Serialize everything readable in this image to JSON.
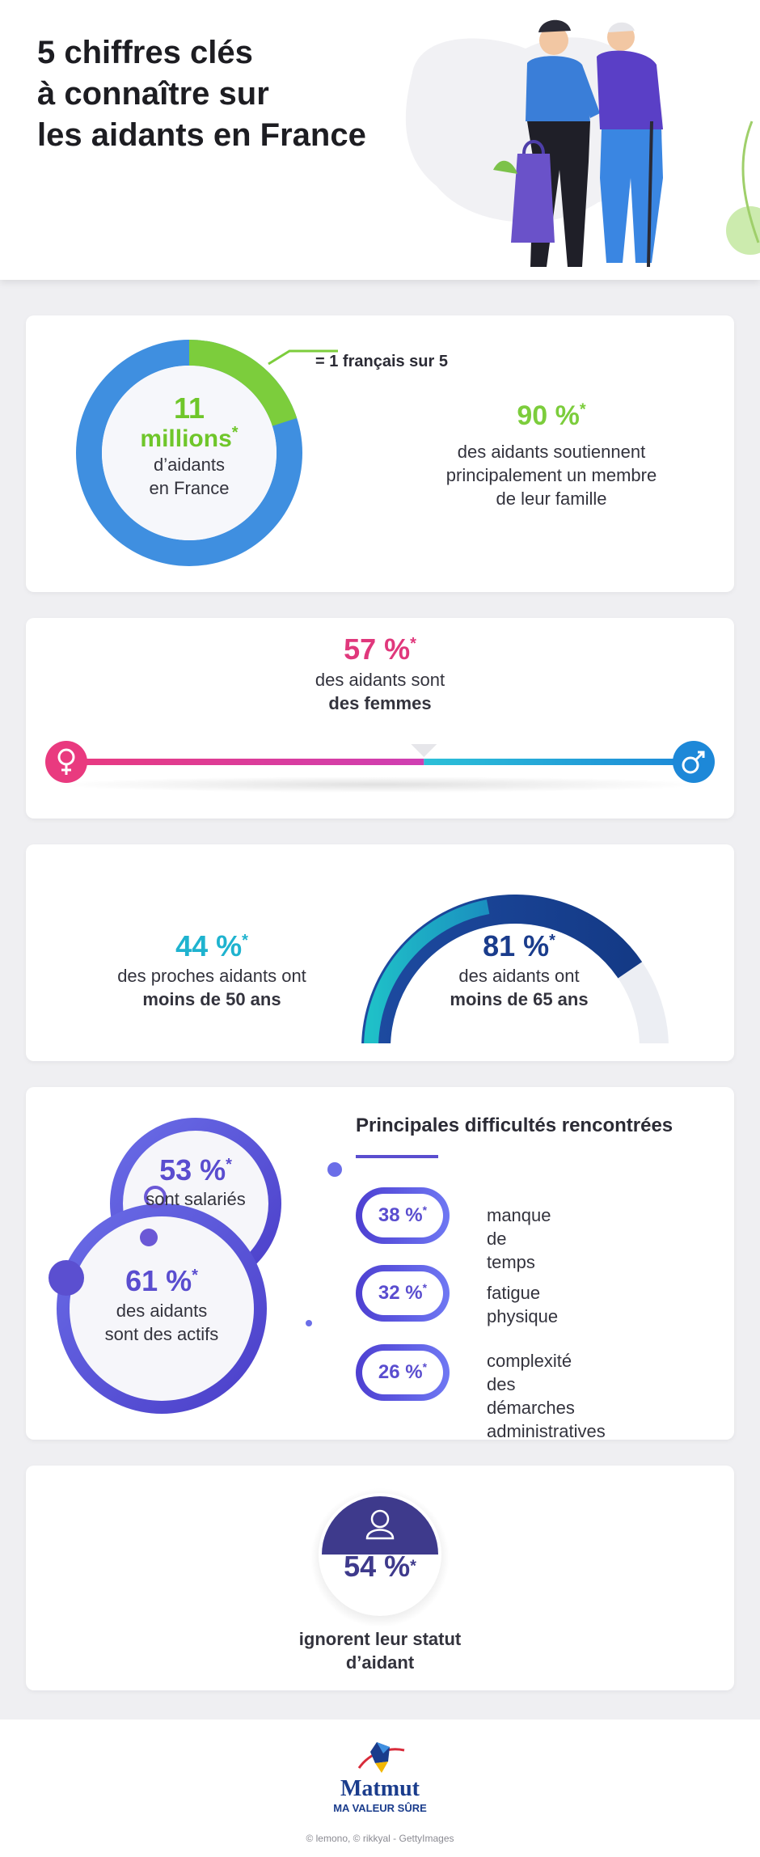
{
  "header": {
    "title_line1": "5 chiffres clés",
    "title_line2": "à connaître sur",
    "title_line3": "les aidants en France"
  },
  "card1": {
    "donut_number": "11",
    "donut_unit": "millions",
    "donut_star": "*",
    "donut_text1": "d’aidants",
    "donut_text2": "en France",
    "callout": "= 1 français sur 5",
    "donut_share": 0.2,
    "stat_value": "90 %",
    "stat_star": "*",
    "stat_line1": "des aidants soutiennent",
    "stat_line2": "principalement un membre",
    "stat_line3": "de leur famille"
  },
  "card2": {
    "value": "57 %",
    "star": "*",
    "line1": "des aidants sont",
    "line2": "des femmes",
    "female_share": 0.57,
    "female_icon": "female-symbol-icon",
    "male_icon": "male-symbol-icon"
  },
  "card3": {
    "left_value": "44 %",
    "left_star": "*",
    "left_line1": "des proches aidants ont",
    "left_line2": "moins de 50 ans",
    "right_value": "81 %",
    "right_star": "*",
    "right_line1": "des aidants ont",
    "right_line2": "moins de 65 ans",
    "left_share": 0.44,
    "right_share": 0.81
  },
  "card4": {
    "small_value": "53 %",
    "small_star": "*",
    "small_line": "sont salariés",
    "large_value": "61 %",
    "large_star": "*",
    "large_line1": "des aidants",
    "large_line2": "sont des actifs",
    "heading": "Principales difficultés rencontrées",
    "items": [
      {
        "value": "38 %",
        "star": "*",
        "label_line1": "manque de temps",
        "label_line2": ""
      },
      {
        "value": "32 %",
        "star": "*",
        "label_line1": "fatigue physique",
        "label_line2": ""
      },
      {
        "value": "26 %",
        "star": "*",
        "label_line1": "complexité des démarches",
        "label_line2": "administratives"
      }
    ]
  },
  "card5": {
    "value": "54 %",
    "star": "*",
    "line1": "ignorent leur statut",
    "line2": "d’aidant",
    "icon": "user-icon"
  },
  "footer": {
    "brand": "Matmut",
    "tagline": "MA VALEUR SÛRE",
    "credits": "© lemono, © rikkyal - GettyImages"
  },
  "colors": {
    "green": "#6fc62a",
    "blue": "#3f8fe0",
    "pink": "#e0387c",
    "cyan": "#1fb3cf",
    "navy": "#1a3c8c",
    "purple": "#5a4dcf"
  }
}
